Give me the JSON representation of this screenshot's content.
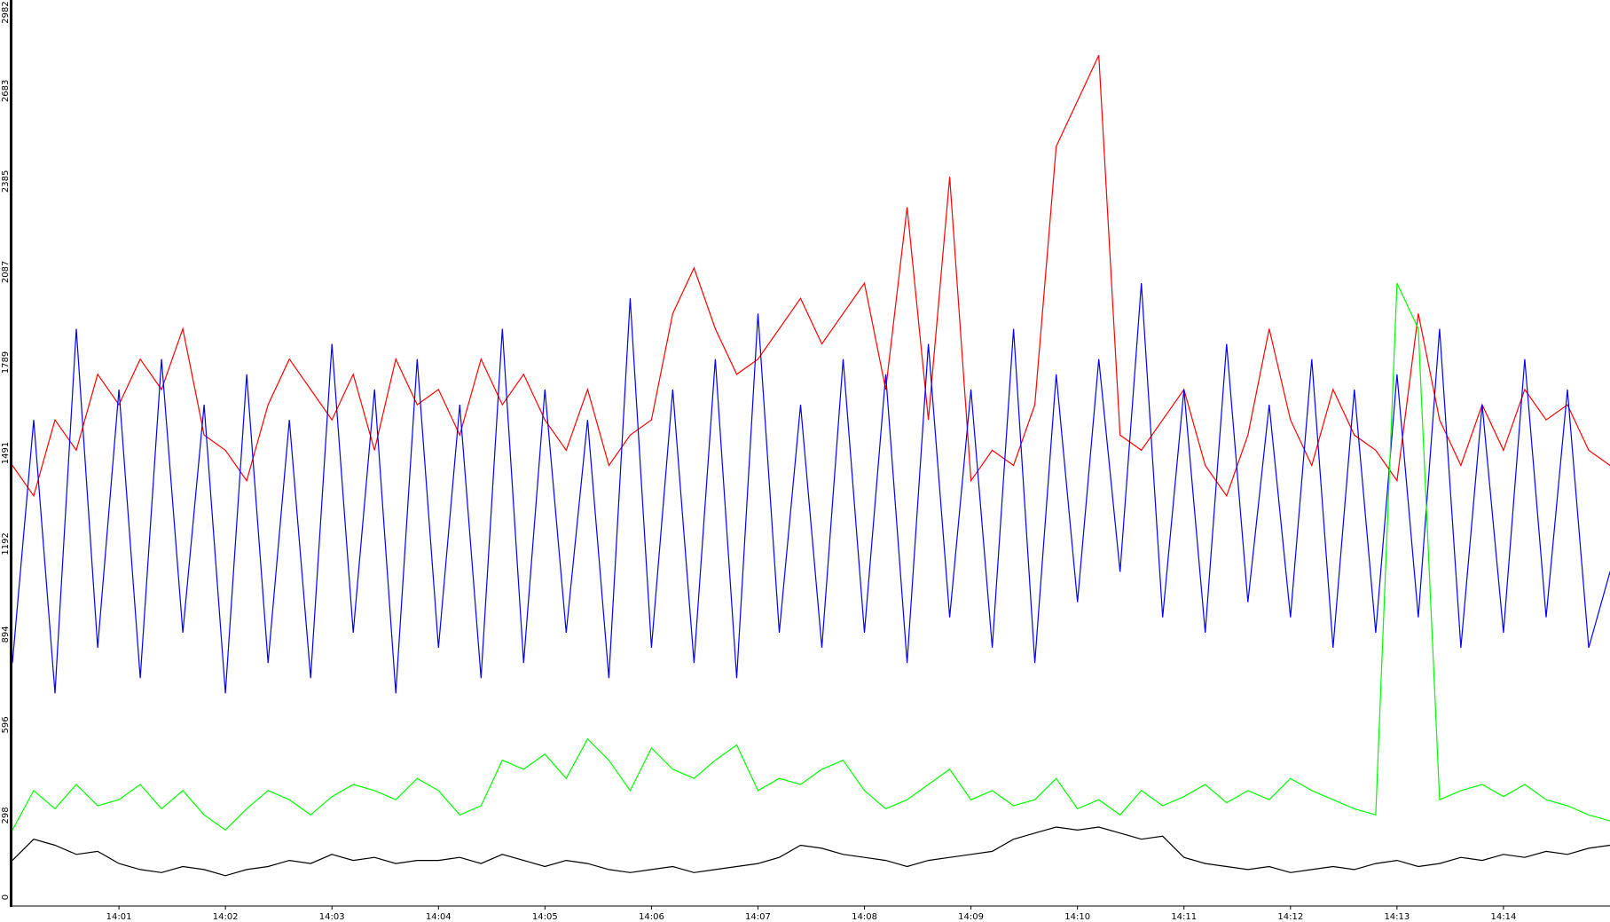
{
  "chart_data": {
    "type": "line",
    "x": [
      0,
      0.2,
      0.4,
      0.6,
      0.8,
      1,
      1.2,
      1.4,
      1.6,
      1.8,
      2,
      2.2,
      2.4,
      2.6,
      2.8,
      3,
      3.2,
      3.4,
      3.6,
      3.8,
      4,
      4.2,
      4.4,
      4.6,
      4.8,
      5,
      5.2,
      5.4,
      5.6,
      5.8,
      6,
      6.2,
      6.4,
      6.6,
      6.8,
      7,
      7.2,
      7.4,
      7.6,
      7.8,
      8,
      8.2,
      8.4,
      8.6,
      8.8,
      9,
      9.2,
      9.4,
      9.6,
      9.8,
      10,
      10.2,
      10.4,
      10.6,
      10.8,
      11,
      11.2,
      11.4,
      11.6,
      11.8,
      12,
      12.2,
      12.4,
      12.6,
      12.8,
      13,
      13.2,
      13.4,
      13.6,
      13.8,
      14,
      14.2,
      14.4,
      14.6,
      14.8,
      15
    ],
    "series": [
      {
        "color": "#ff0000",
        "values": [
          1450,
          1350,
          1600,
          1500,
          1750,
          1650,
          1800,
          1700,
          1900,
          1550,
          1500,
          1400,
          1650,
          1800,
          1700,
          1600,
          1750,
          1500,
          1800,
          1650,
          1700,
          1550,
          1800,
          1650,
          1750,
          1600,
          1500,
          1700,
          1450,
          1550,
          1600,
          1950,
          2100,
          1900,
          1750,
          1800,
          1900,
          2000,
          1850,
          1950,
          2050,
          1700,
          2300,
          1600,
          2400,
          1400,
          1500,
          1450,
          1650,
          2500,
          2650,
          2800,
          1550,
          1500,
          1600,
          1700,
          1450,
          1350,
          1550,
          1900,
          1600,
          1450,
          1700,
          1550,
          1500,
          1400,
          1950,
          1600,
          1450,
          1650,
          1500,
          1700,
          1600,
          1650,
          1500,
          1450
        ]
      },
      {
        "color": "#0000ff",
        "values": [
          800,
          1600,
          700,
          1900,
          850,
          1700,
          750,
          1800,
          900,
          1650,
          700,
          1750,
          800,
          1600,
          750,
          1850,
          900,
          1700,
          700,
          1800,
          850,
          1650,
          750,
          1900,
          800,
          1700,
          900,
          1600,
          750,
          2000,
          850,
          1700,
          800,
          1800,
          750,
          1950,
          900,
          1650,
          850,
          1800,
          900,
          1750,
          800,
          1850,
          950,
          1700,
          850,
          1900,
          800,
          1750,
          1000,
          1800,
          1100,
          2050,
          950,
          1700,
          900,
          1850,
          1000,
          1650,
          950,
          1800,
          850,
          1700,
          900,
          1750,
          950,
          1900,
          850,
          1650,
          900,
          1800,
          950,
          1700,
          850,
          1100
        ]
      },
      {
        "color": "#00ff00",
        "values": [
          250,
          380,
          320,
          400,
          330,
          350,
          400,
          320,
          380,
          300,
          250,
          320,
          380,
          350,
          300,
          360,
          400,
          380,
          350,
          420,
          380,
          300,
          330,
          480,
          450,
          500,
          420,
          550,
          480,
          380,
          520,
          450,
          420,
          480,
          530,
          380,
          420,
          400,
          450,
          480,
          380,
          320,
          350,
          400,
          450,
          350,
          380,
          330,
          350,
          420,
          320,
          350,
          300,
          380,
          330,
          360,
          400,
          340,
          380,
          350,
          420,
          380,
          350,
          320,
          300,
          2050,
          1900,
          350,
          380,
          400,
          360,
          400,
          350,
          330,
          300,
          280
        ]
      },
      {
        "color": "#000000",
        "values": [
          150,
          220,
          200,
          170,
          180,
          140,
          120,
          110,
          130,
          120,
          100,
          120,
          130,
          150,
          140,
          170,
          150,
          160,
          140,
          150,
          150,
          160,
          140,
          170,
          150,
          130,
          150,
          140,
          120,
          110,
          120,
          130,
          110,
          120,
          130,
          140,
          160,
          200,
          190,
          170,
          160,
          150,
          130,
          150,
          160,
          170,
          180,
          220,
          240,
          260,
          250,
          260,
          240,
          220,
          230,
          160,
          140,
          130,
          120,
          130,
          110,
          120,
          130,
          120,
          140,
          150,
          130,
          140,
          160,
          150,
          170,
          160,
          180,
          170,
          190,
          200
        ]
      }
    ],
    "xlim": [
      0,
      15
    ],
    "xticks": [
      {
        "value": 1,
        "label": "14:01"
      },
      {
        "value": 2,
        "label": "14:02"
      },
      {
        "value": 3,
        "label": "14:03"
      },
      {
        "value": 4,
        "label": "14:04"
      },
      {
        "value": 5,
        "label": "14:05"
      },
      {
        "value": 6,
        "label": "14:06"
      },
      {
        "value": 7,
        "label": "14:07"
      },
      {
        "value": 8,
        "label": "14:08"
      },
      {
        "value": 9,
        "label": "14:09"
      },
      {
        "value": 10,
        "label": "14:10"
      },
      {
        "value": 11,
        "label": "14:11"
      },
      {
        "value": 12,
        "label": "14:12"
      },
      {
        "value": 13,
        "label": "14:13"
      },
      {
        "value": 14,
        "label": "14:14"
      }
    ],
    "ylim": [
      0,
      2982
    ],
    "yticks": [
      0,
      298,
      596,
      894,
      1192,
      1491,
      1789,
      2087,
      2385,
      2683,
      2982
    ]
  }
}
